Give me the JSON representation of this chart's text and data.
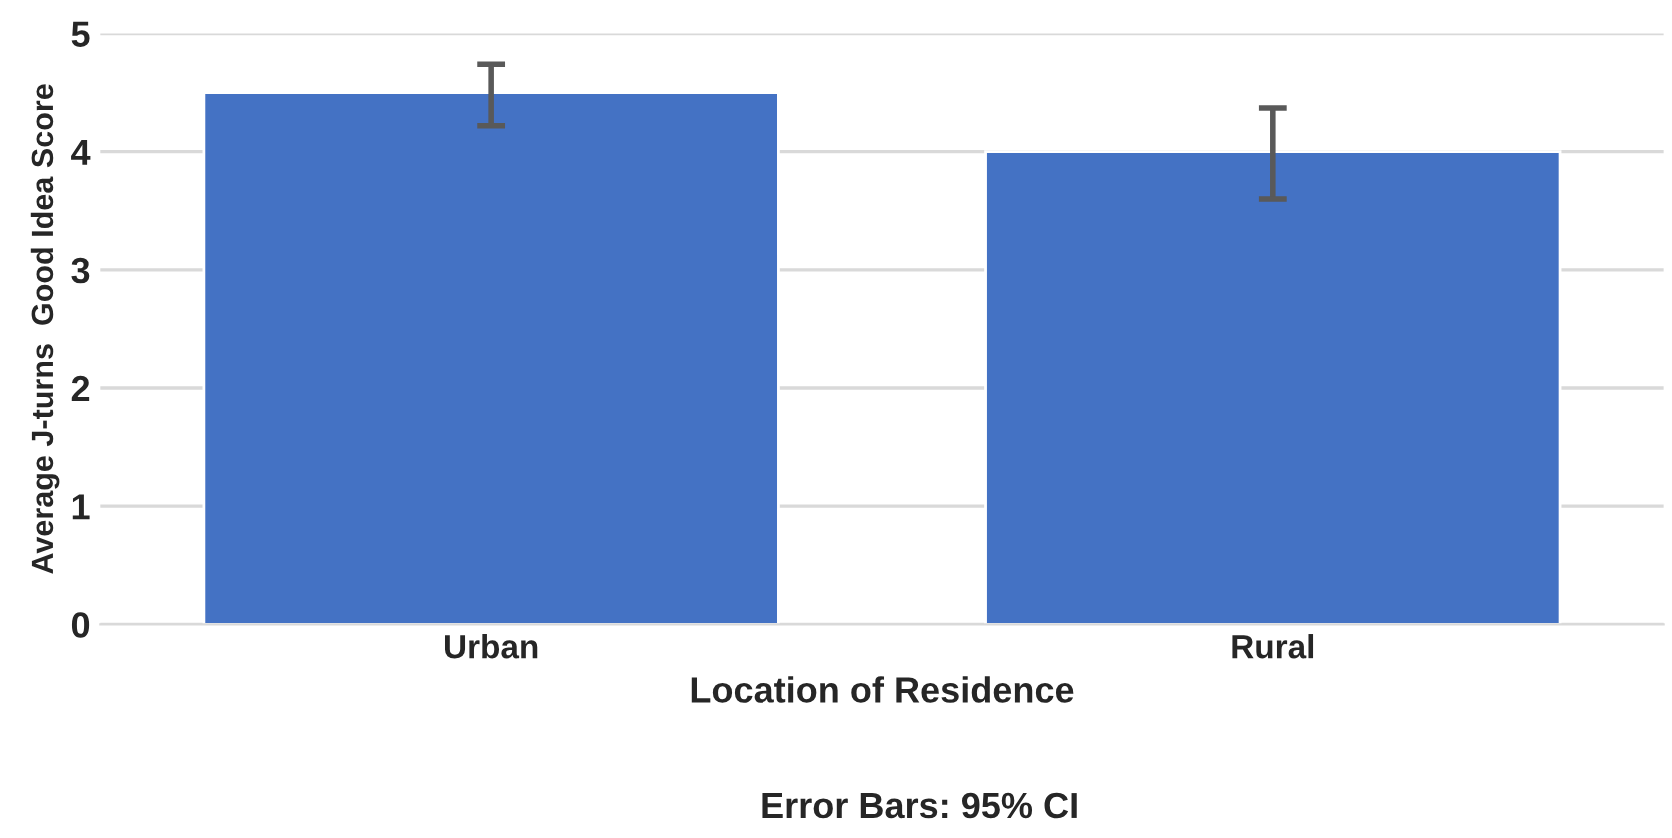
{
  "chart_data": {
    "type": "bar",
    "categories": [
      "Urban",
      "Rural"
    ],
    "values": [
      4.5,
      4.0
    ],
    "errors": [
      [
        4.22,
        4.74
      ],
      [
        3.6,
        4.37
      ]
    ],
    "color": "#4472c4",
    "xlabel": "Location of Residence",
    "ylabel": "Average J-turns  Good Idea Score",
    "annotations": [
      "Error Bars: 95% CI"
    ],
    "ylim": [
      0,
      5
    ],
    "yticks": [
      0,
      1,
      2,
      3,
      4,
      5
    ],
    "grid": "y",
    "legend": false
  }
}
